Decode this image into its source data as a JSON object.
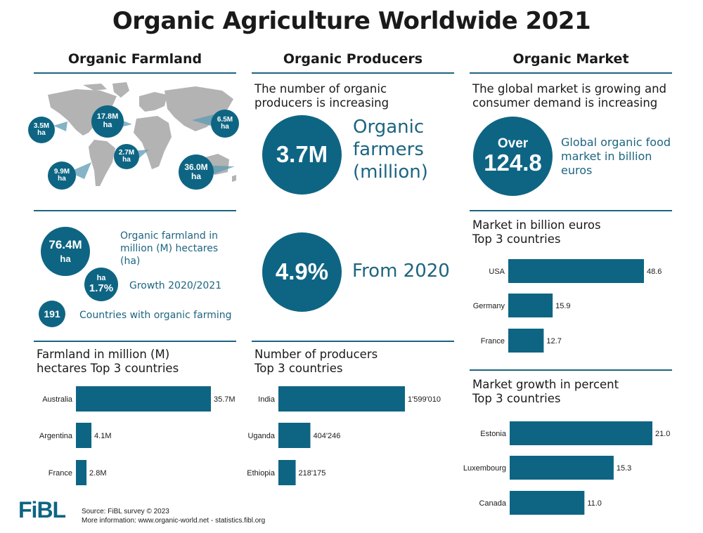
{
  "title": "Organic Agriculture Worldwide 2021",
  "columns": {
    "farmland": "Organic Farmland",
    "producers": "Organic Producers",
    "market": "Organic Market"
  },
  "map_bubbles": [
    {
      "value": "3.5M",
      "unit": "ha"
    },
    {
      "value": "17.8M",
      "unit": "ha"
    },
    {
      "value": "6.5M",
      "unit": "ha"
    },
    {
      "value": "2.7M",
      "unit": "ha"
    },
    {
      "value": "9.9M",
      "unit": "ha"
    },
    {
      "value": "36.0M",
      "unit": "ha"
    }
  ],
  "farmland_stats": {
    "total_value": "76.4M",
    "total_unit": "ha",
    "total_label": "Organic farmland in million (M) hectares (ha)",
    "growth_unit": "ha",
    "growth_value": "1.7%",
    "growth_label": "Growth 2020/2021",
    "countries_value": "191",
    "countries_label": "Countries with organic farming"
  },
  "producers_stats": {
    "intro": "The number of organic producers is increasing",
    "farmers_value": "3.7M",
    "farmers_label": "Organic farmers (million)",
    "growth_value": "4.9%",
    "growth_label": "From 2020"
  },
  "market_stats": {
    "intro": "The global market is growing and consumer demand is increasing",
    "over": "Over",
    "value": "124.8",
    "label": "Global organic food market in billion euros"
  },
  "footer": {
    "logo": "FiBL",
    "source": "Source: FiBL survey © 2023",
    "more": "More information: www.organic-world.net - statistics.fibl.org"
  },
  "colors": {
    "teal": "#0e6583",
    "map": "#b3b3b3"
  },
  "chart_data": [
    {
      "type": "bar",
      "orientation": "horizontal",
      "title": "Farmland in million (M) hectares Top 3 countries",
      "categories": [
        "Australia",
        "Argentina",
        "France"
      ],
      "values": [
        35.7,
        4.1,
        2.8
      ],
      "value_labels": [
        "35.7M",
        "4.1M",
        "2.8M"
      ]
    },
    {
      "type": "bar",
      "orientation": "horizontal",
      "title": "Number of producers Top 3 countries",
      "categories": [
        "India",
        "Uganda",
        "Ethiopia"
      ],
      "values": [
        1599010,
        404246,
        218175
      ],
      "value_labels": [
        "1'599'010",
        "404'246",
        "218'175"
      ]
    },
    {
      "type": "bar",
      "orientation": "horizontal",
      "title": "Market in billion euros Top 3 countries",
      "categories": [
        "USA",
        "Germany",
        "France"
      ],
      "values": [
        48.6,
        15.9,
        12.7
      ],
      "value_labels": [
        "48.6",
        "15.9",
        "12.7"
      ]
    },
    {
      "type": "bar",
      "orientation": "horizontal",
      "title": "Market growth in percent Top 3 countries",
      "categories": [
        "Estonia",
        "Luxembourg",
        "Canada"
      ],
      "values": [
        21.0,
        15.3,
        11.0
      ],
      "value_labels": [
        "21.0",
        "15.3",
        "11.0"
      ]
    }
  ]
}
